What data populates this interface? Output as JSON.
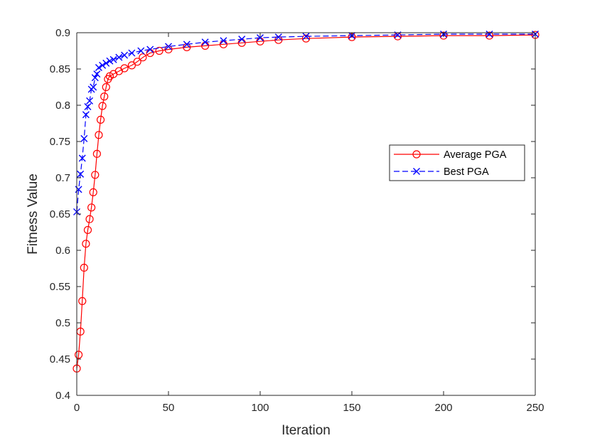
{
  "chart_data": {
    "type": "line",
    "title": "",
    "xlabel": "Iteration",
    "ylabel": "Fitness Value",
    "xlim": [
      0,
      250
    ],
    "ylim": [
      0.4,
      0.9
    ],
    "xticks": [
      "0",
      "50",
      "100",
      "150",
      "200",
      "250"
    ],
    "yticks": [
      "0.4",
      "0.45",
      "0.5",
      "0.55",
      "0.6",
      "0.65",
      "0.7",
      "0.75",
      "0.8",
      "0.85",
      "0.9"
    ],
    "grid": false,
    "legend_position": "right",
    "series": [
      {
        "name": "Average PGA",
        "color": "#ff0000",
        "line_style": "solid",
        "marker": "circle",
        "points": [
          [
            0,
            0.437
          ],
          [
            1,
            0.456
          ],
          [
            2,
            0.488
          ],
          [
            3,
            0.53
          ],
          [
            4,
            0.576
          ],
          [
            5,
            0.609
          ],
          [
            6,
            0.628
          ],
          [
            7,
            0.643
          ],
          [
            8,
            0.659
          ],
          [
            9,
            0.68
          ],
          [
            10,
            0.704
          ],
          [
            11,
            0.733
          ],
          [
            12,
            0.759
          ],
          [
            13,
            0.78
          ],
          [
            14,
            0.799
          ],
          [
            15,
            0.812
          ],
          [
            16,
            0.825
          ],
          [
            17,
            0.836
          ],
          [
            18,
            0.84
          ],
          [
            20,
            0.843
          ],
          [
            23,
            0.847
          ],
          [
            26,
            0.851
          ],
          [
            30,
            0.855
          ],
          [
            33,
            0.86
          ],
          [
            36,
            0.866
          ],
          [
            40,
            0.872
          ],
          [
            45,
            0.875
          ],
          [
            50,
            0.877
          ],
          [
            60,
            0.88
          ],
          [
            70,
            0.882
          ],
          [
            80,
            0.884
          ],
          [
            90,
            0.886
          ],
          [
            100,
            0.888
          ],
          [
            110,
            0.89
          ],
          [
            125,
            0.892
          ],
          [
            150,
            0.894
          ],
          [
            175,
            0.895
          ],
          [
            200,
            0.896
          ],
          [
            225,
            0.896
          ],
          [
            250,
            0.897
          ]
        ]
      },
      {
        "name": "Best PGA",
        "color": "#0000ff",
        "line_style": "dashed",
        "marker": "x",
        "points": [
          [
            0,
            0.653
          ],
          [
            1,
            0.684
          ],
          [
            2,
            0.705
          ],
          [
            3,
            0.727
          ],
          [
            4,
            0.754
          ],
          [
            5,
            0.787
          ],
          [
            6,
            0.798
          ],
          [
            7,
            0.806
          ],
          [
            8,
            0.822
          ],
          [
            9,
            0.825
          ],
          [
            10,
            0.838
          ],
          [
            11,
            0.843
          ],
          [
            12,
            0.852
          ],
          [
            14,
            0.855
          ],
          [
            16,
            0.858
          ],
          [
            18,
            0.861
          ],
          [
            20,
            0.863
          ],
          [
            23,
            0.866
          ],
          [
            26,
            0.869
          ],
          [
            30,
            0.872
          ],
          [
            35,
            0.875
          ],
          [
            40,
            0.877
          ],
          [
            50,
            0.881
          ],
          [
            60,
            0.884
          ],
          [
            70,
            0.887
          ],
          [
            80,
            0.889
          ],
          [
            90,
            0.891
          ],
          [
            100,
            0.893
          ],
          [
            110,
            0.894
          ],
          [
            125,
            0.895
          ],
          [
            150,
            0.896
          ],
          [
            175,
            0.897
          ],
          [
            200,
            0.898
          ],
          [
            225,
            0.898
          ],
          [
            250,
            0.898
          ]
        ]
      }
    ]
  }
}
